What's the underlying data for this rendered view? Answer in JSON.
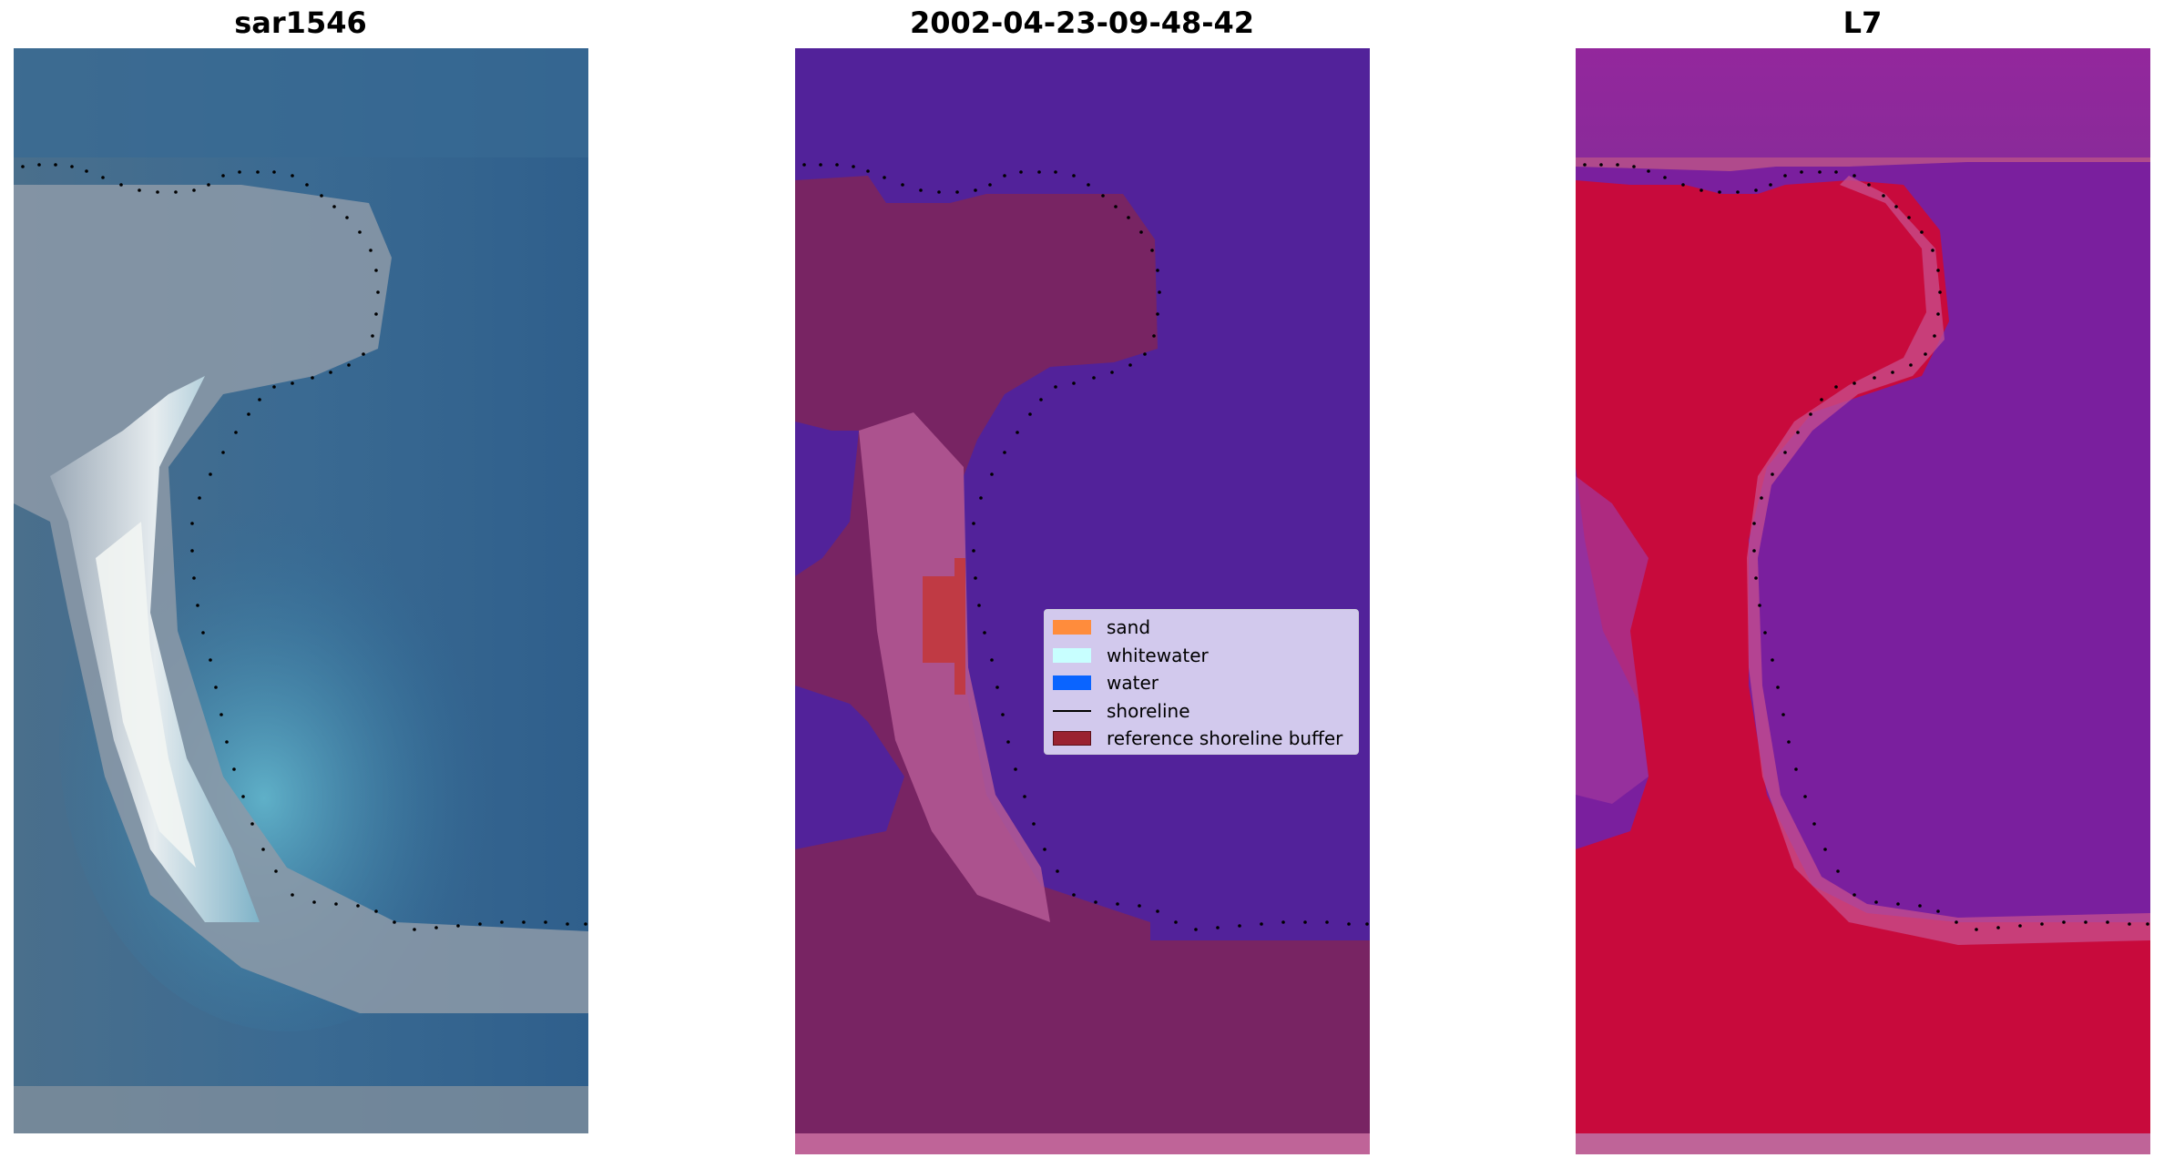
{
  "panels": [
    {
      "title": "sar1546",
      "kind": "rgb-image"
    },
    {
      "title": "2002-04-23-09-48-42",
      "kind": "classified-image"
    },
    {
      "title": "L7",
      "kind": "index-image"
    }
  ],
  "legend": {
    "items": [
      {
        "label": "sand",
        "type": "patch",
        "color": "#ff8c3c"
      },
      {
        "label": "whitewater",
        "type": "patch",
        "color": "#c8ffff"
      },
      {
        "label": "water",
        "type": "patch",
        "color": "#0a64ff"
      },
      {
        "label": "shoreline",
        "type": "line",
        "color": "#000000"
      },
      {
        "label": "reference shoreline buffer",
        "type": "patch",
        "color": "#9a2230"
      }
    ]
  },
  "colors": {
    "classified_water": "#52229a",
    "classified_buffer": "#7a2560",
    "classified_buffer_light": "#b55b95",
    "classified_sand": "#c03a44",
    "index_land": "#c80a3c",
    "index_water": "#7a1f9e",
    "rgb_water": "#2d5a8a",
    "rgb_bright": "#e8eef0"
  }
}
